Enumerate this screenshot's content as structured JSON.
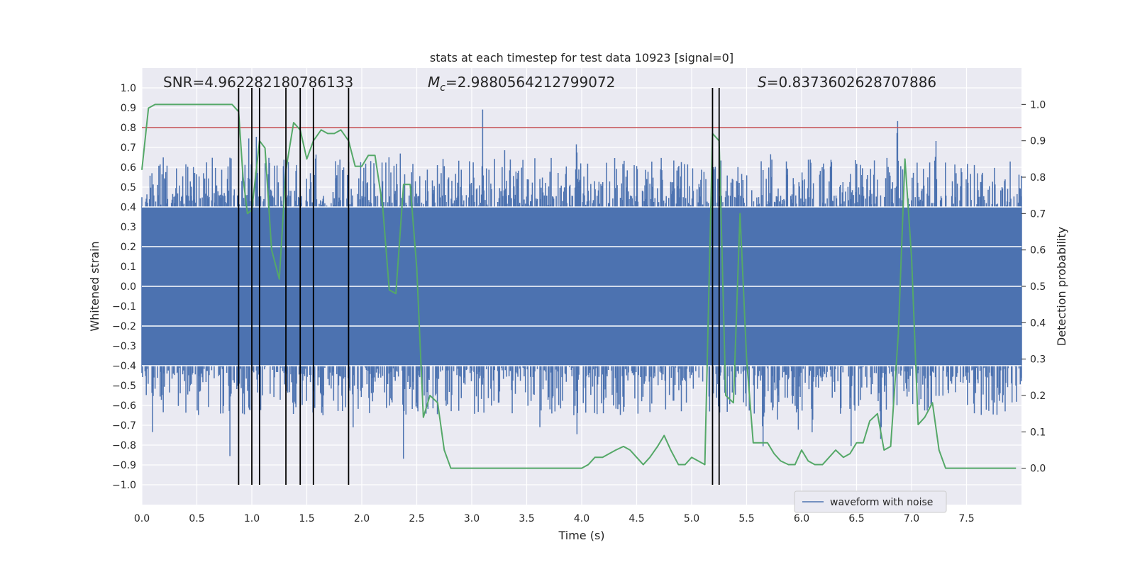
{
  "chart_data": {
    "type": "line",
    "title": "stats at each timestep for test data 10923 [signal=0]",
    "xlabel": "Time (s)",
    "ylabel": "Whitened strain",
    "ylabel_right": "Detection probability",
    "xlim": [
      0,
      8
    ],
    "ylim": [
      -1.1,
      1.1
    ],
    "ylim_right": [
      -0.1,
      1.1
    ],
    "x_ticks": [
      0.0,
      0.5,
      1.0,
      1.5,
      2.0,
      2.5,
      3.0,
      3.5,
      4.0,
      4.5,
      5.0,
      5.5,
      6.0,
      6.5,
      7.0,
      7.5
    ],
    "x_tick_labels": [
      "0.0",
      "0.5",
      "1.0",
      "1.5",
      "2.0",
      "2.5",
      "3.0",
      "3.5",
      "4.0",
      "4.5",
      "5.0",
      "5.5",
      "6.0",
      "6.5",
      "7.0",
      "7.5"
    ],
    "y_ticks": [
      -1.0,
      -0.9,
      -0.8,
      -0.7,
      -0.6,
      -0.5,
      -0.4,
      -0.3,
      -0.2,
      -0.1,
      0.0,
      0.1,
      0.2,
      0.3,
      0.4,
      0.5,
      0.6,
      0.7,
      0.8,
      0.9,
      1.0
    ],
    "y_tick_labels": [
      "−1.0",
      "−0.9",
      "−0.8",
      "−0.7",
      "−0.6",
      "−0.5",
      "−0.4",
      "−0.3",
      "−0.2",
      "−0.1",
      "0.0",
      "0.1",
      "0.2",
      "0.3",
      "0.4",
      "0.5",
      "0.6",
      "0.7",
      "0.8",
      "0.9",
      "1.0"
    ],
    "y_right_ticks": [
      0.0,
      0.1,
      0.2,
      0.3,
      0.4,
      0.5,
      0.6,
      0.7,
      0.8,
      0.9,
      1.0
    ],
    "y_right_tick_labels": [
      "0.0",
      "0.1",
      "0.2",
      "0.3",
      "0.4",
      "0.5",
      "0.6",
      "0.7",
      "0.8",
      "0.9",
      "1.0"
    ],
    "annotations": {
      "snr": "SNR=4.962282180786133",
      "mc_symbol": "M",
      "mc_sub": "c",
      "mc_value": "=2.9880564212799072",
      "s_symbol": "S",
      "s_value": "=0.8373602628707886"
    },
    "legend": {
      "label": "waveform with noise",
      "placement": "lower right"
    },
    "threshold": {
      "value": 0.8,
      "axis": "left",
      "color": "#c44e52"
    },
    "vertical_lines_x": [
      0.88,
      1.0,
      1.07,
      1.31,
      1.44,
      1.56,
      1.88,
      5.19,
      5.25
    ],
    "waveform": {
      "name": "waveform with noise",
      "color": "#4c72b0",
      "x_range": [
        0.0,
        8.0
      ],
      "band_low": [
        -0.4,
        0.4
      ],
      "peaks_top": [
        [
          0.07,
          0.57
        ],
        [
          0.15,
          0.63
        ],
        [
          0.23,
          0.75
        ],
        [
          0.3,
          0.63
        ],
        [
          0.45,
          0.57
        ],
        [
          0.6,
          0.63
        ],
        [
          0.82,
          0.55
        ],
        [
          0.97,
          0.84
        ],
        [
          1.04,
          0.87
        ],
        [
          1.18,
          0.64
        ],
        [
          1.35,
          0.63
        ],
        [
          1.58,
          0.88
        ],
        [
          1.65,
          0.71
        ],
        [
          1.88,
          0.67
        ],
        [
          2.05,
          0.63
        ],
        [
          2.19,
          0.66
        ],
        [
          2.35,
          0.68
        ],
        [
          2.6,
          0.71
        ],
        [
          2.87,
          0.69
        ],
        [
          3.1,
          0.92
        ],
        [
          3.3,
          0.73
        ],
        [
          3.42,
          0.79
        ],
        [
          3.62,
          0.7
        ],
        [
          3.95,
          1.0
        ],
        [
          4.16,
          0.63
        ],
        [
          4.3,
          0.7
        ],
        [
          4.65,
          0.73
        ],
        [
          4.88,
          0.74
        ],
        [
          5.07,
          0.68
        ],
        [
          5.2,
          0.7
        ],
        [
          5.5,
          0.62
        ],
        [
          5.72,
          0.72
        ],
        [
          5.87,
          0.69
        ],
        [
          6.06,
          0.75
        ],
        [
          6.2,
          0.73
        ],
        [
          6.35,
          0.76
        ],
        [
          6.52,
          0.74
        ],
        [
          6.66,
          0.72
        ],
        [
          6.87,
          1.0
        ],
        [
          7.05,
          0.66
        ],
        [
          7.22,
          1.0
        ],
        [
          7.45,
          0.79
        ],
        [
          7.63,
          0.66
        ],
        [
          7.82,
          0.63
        ],
        [
          7.98,
          0.72
        ]
      ],
      "peaks_bottom": [
        [
          0.0,
          -0.55
        ],
        [
          0.1,
          -0.88
        ],
        [
          0.18,
          -0.67
        ],
        [
          0.35,
          -0.55
        ],
        [
          0.52,
          -0.6
        ],
        [
          0.8,
          -0.9
        ],
        [
          0.9,
          -0.62
        ],
        [
          1.05,
          -0.7
        ],
        [
          1.2,
          -0.61
        ],
        [
          1.4,
          -0.74
        ],
        [
          1.6,
          -0.66
        ],
        [
          1.92,
          -0.76
        ],
        [
          2.1,
          -0.7
        ],
        [
          2.38,
          -1.0
        ],
        [
          2.5,
          -0.83
        ],
        [
          2.6,
          -0.7
        ],
        [
          2.78,
          -0.72
        ],
        [
          3.02,
          -0.58
        ],
        [
          3.25,
          -0.66
        ],
        [
          3.62,
          -0.73
        ],
        [
          3.96,
          -0.91
        ],
        [
          4.2,
          -0.75
        ],
        [
          4.38,
          -0.84
        ],
        [
          4.62,
          -0.66
        ],
        [
          4.95,
          -0.62
        ],
        [
          5.25,
          -0.94
        ],
        [
          5.4,
          -0.66
        ],
        [
          5.65,
          -0.94
        ],
        [
          5.78,
          -0.79
        ],
        [
          5.97,
          -0.89
        ],
        [
          6.1,
          -0.9
        ],
        [
          6.3,
          -0.65
        ],
        [
          6.45,
          -0.83
        ],
        [
          6.72,
          -0.92
        ],
        [
          6.97,
          -0.59
        ],
        [
          7.18,
          -0.73
        ],
        [
          7.4,
          -0.56
        ],
        [
          7.58,
          -0.65
        ],
        [
          7.8,
          -0.78
        ],
        [
          7.95,
          -0.58
        ]
      ]
    },
    "series": [
      {
        "name": "detection probability",
        "color": "#55a868",
        "axis": "right",
        "x": [
          0.0,
          0.06,
          0.12,
          0.2,
          0.3,
          0.5,
          0.7,
          0.82,
          0.88,
          0.92,
          0.96,
          1.0,
          1.07,
          1.12,
          1.18,
          1.25,
          1.31,
          1.38,
          1.44,
          1.5,
          1.56,
          1.63,
          1.69,
          1.75,
          1.81,
          1.88,
          1.94,
          2.0,
          2.06,
          2.12,
          2.19,
          2.25,
          2.31,
          2.38,
          2.44,
          2.5,
          2.56,
          2.62,
          2.69,
          2.75,
          2.81,
          2.88,
          3.0,
          3.12,
          3.25,
          3.38,
          3.5,
          3.75,
          4.0,
          4.06,
          4.12,
          4.19,
          4.25,
          4.31,
          4.38,
          4.44,
          4.5,
          4.56,
          4.62,
          4.69,
          4.75,
          4.81,
          4.88,
          4.94,
          5.0,
          5.06,
          5.12,
          5.19,
          5.25,
          5.31,
          5.38,
          5.44,
          5.5,
          5.56,
          5.62,
          5.69,
          5.75,
          5.81,
          5.88,
          5.94,
          6.0,
          6.06,
          6.12,
          6.19,
          6.25,
          6.31,
          6.38,
          6.44,
          6.5,
          6.56,
          6.62,
          6.69,
          6.75,
          6.81,
          6.88,
          6.94,
          7.0,
          7.06,
          7.12,
          7.19,
          7.25,
          7.31,
          7.38,
          7.44,
          7.5,
          7.75,
          7.95
        ],
        "y": [
          0.82,
          0.99,
          1.0,
          1.0,
          1.0,
          1.0,
          1.0,
          1.0,
          0.98,
          0.8,
          0.7,
          0.71,
          0.9,
          0.88,
          0.6,
          0.52,
          0.82,
          0.95,
          0.93,
          0.85,
          0.9,
          0.93,
          0.92,
          0.92,
          0.93,
          0.9,
          0.83,
          0.83,
          0.86,
          0.86,
          0.72,
          0.49,
          0.48,
          0.78,
          0.78,
          0.55,
          0.14,
          0.2,
          0.18,
          0.05,
          0.0,
          0.0,
          0.0,
          0.0,
          0.0,
          0.0,
          0.0,
          0.0,
          0.0,
          0.01,
          0.03,
          0.03,
          0.04,
          0.05,
          0.06,
          0.05,
          0.03,
          0.01,
          0.03,
          0.06,
          0.09,
          0.05,
          0.01,
          0.01,
          0.03,
          0.02,
          0.01,
          0.92,
          0.9,
          0.2,
          0.18,
          0.7,
          0.3,
          0.07,
          0.07,
          0.07,
          0.04,
          0.02,
          0.01,
          0.01,
          0.05,
          0.02,
          0.01,
          0.01,
          0.03,
          0.05,
          0.03,
          0.04,
          0.07,
          0.07,
          0.13,
          0.15,
          0.05,
          0.06,
          0.37,
          0.85,
          0.58,
          0.12,
          0.14,
          0.18,
          0.05,
          0.0,
          0.0,
          0.0,
          0.0,
          0.0,
          0.0
        ]
      }
    ]
  }
}
